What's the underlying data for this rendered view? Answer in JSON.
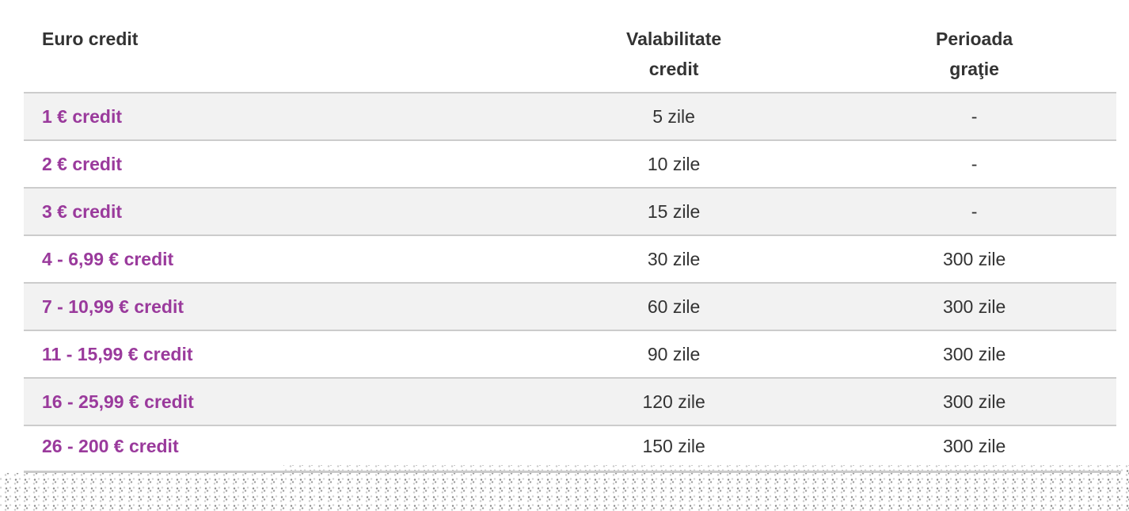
{
  "colors": {
    "accent_purple": "#9a3a9c",
    "text_dark": "#333333",
    "row_alt_bg": "#f2f2f2",
    "border_gray": "#cccccc"
  },
  "table": {
    "columns": [
      {
        "id": "credit",
        "label": "Euro credit"
      },
      {
        "id": "validity",
        "label": "Valabilitate\ncredit"
      },
      {
        "id": "grace",
        "label": "Perioada\ngraţie"
      }
    ],
    "rows": [
      {
        "credit": "1 € credit",
        "validity": "5 zile",
        "grace": "-"
      },
      {
        "credit": "2 € credit",
        "validity": "10 zile",
        "grace": "-"
      },
      {
        "credit": "3 € credit",
        "validity": "15 zile",
        "grace": "-"
      },
      {
        "credit": "4 - 6,99 € credit",
        "validity": "30 zile",
        "grace": "300 zile"
      },
      {
        "credit": "7 - 10,99 € credit",
        "validity": "60 zile",
        "grace": "300 zile"
      },
      {
        "credit": "11 - 15,99 € credit",
        "validity": "90 zile",
        "grace": "300 zile"
      },
      {
        "credit": "16 - 25,99 € credit",
        "validity": "120 zile",
        "grace": "300 zile"
      },
      {
        "credit": "26 - 200 € credit",
        "validity": "150 zile",
        "grace": "300 zile"
      }
    ]
  }
}
